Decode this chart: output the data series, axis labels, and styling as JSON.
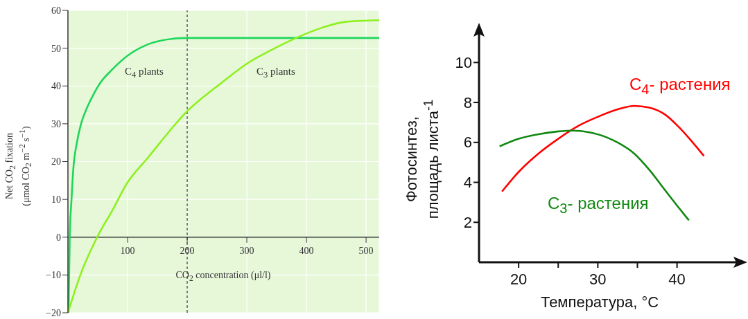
{
  "chart_data": [
    {
      "type": "line",
      "xlabel": "CO$_{2}$ concentration (μl/l)",
      "ylabel": "Net CO$_{2}$ fixation\n(μmol CO$_{2}$ m$^{−2}$ s$^{−1}$)",
      "xlim": [
        0,
        522
      ],
      "xticks": [
        100,
        200,
        300,
        400,
        500
      ],
      "ylim": [
        -20,
        60
      ],
      "yticks": [
        -20,
        -10,
        0,
        10,
        20,
        30,
        40,
        50,
        60
      ],
      "grid": true,
      "ref_lines": [
        {
          "axis": "x",
          "value": 200,
          "line_style": "dashed",
          "color": "#444444"
        }
      ],
      "series": [
        {
          "name": "C$_{4}$ plants",
          "color": "#1ed65a",
          "x": [
            1,
            3,
            6,
            9,
            15,
            22,
            30,
            42,
            55,
            72,
            100,
            134,
            176,
            200,
            300,
            400,
            522
          ],
          "values": [
            -20,
            0,
            10,
            18,
            25,
            30,
            33.5,
            37.5,
            41,
            44,
            48,
            51,
            52.5,
            52.7,
            52.7,
            52.7,
            52.7
          ]
        },
        {
          "name": "C$_{3}$ plants",
          "color": "#8ef01e",
          "x": [
            0,
            22,
            49,
            76,
            98,
            134,
            198,
            259,
            301,
            342,
            384,
            426,
            467,
            522
          ],
          "values": [
            -20,
            -9.5,
            0,
            7.5,
            14,
            21,
            33,
            41,
            46,
            49.6,
            52.8,
            55.4,
            57,
            57.4
          ]
        }
      ]
    },
    {
      "type": "line",
      "xlabel": "Температура, °C",
      "ylabel": "Фотосинтез,\nплощадь листа$^{-1}$",
      "xlim": [
        15,
        48
      ],
      "xticks": [
        20,
        {
          "value": 25,
          "label": null
        },
        30,
        {
          "value": 35,
          "label": null
        },
        40
      ],
      "ylim": [
        0,
        11.5
      ],
      "yticks": [
        2,
        4,
        6,
        8,
        10
      ],
      "series": [
        {
          "name": "C$_{4}$- растения",
          "color": "#ff0000",
          "x": [
            17.9,
            20,
            22.5,
            25,
            27.5,
            30,
            32.7,
            34.6,
            36.5,
            38.5,
            40.1,
            41.7,
            43.4
          ],
          "values": [
            3.54,
            4.52,
            5.44,
            6.18,
            6.82,
            7.28,
            7.68,
            7.83,
            7.74,
            7.39,
            6.82,
            6.13,
            5.32
          ]
        },
        {
          "name": "C$_{3}$- растения",
          "color": "#118811",
          "x": [
            17.6,
            20,
            22.5,
            25,
            26.9,
            28.8,
            31.2,
            32.7,
            34.6,
            36.5,
            38.5,
            40.1,
            41.5
          ],
          "values": [
            5.8,
            6.18,
            6.41,
            6.55,
            6.59,
            6.51,
            6.24,
            5.95,
            5.44,
            4.63,
            3.6,
            2.79,
            2.1
          ]
        }
      ]
    }
  ]
}
